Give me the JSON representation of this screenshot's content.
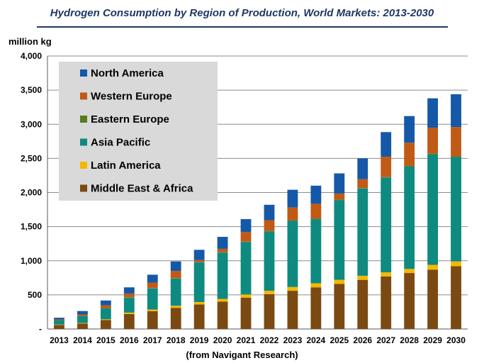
{
  "chart_data": {
    "type": "bar",
    "stacked": true,
    "title": "Hydrogen Consumption by Region of Production, World Markets: 2013-2030",
    "ylabel": "million kg",
    "source": "(from Navigant Research)",
    "ylim": [
      0,
      4000
    ],
    "yticks": [
      0,
      500,
      1000,
      1500,
      2000,
      2500,
      3000,
      3500,
      4000
    ],
    "ytick_labels": [
      "-",
      "500",
      "1,000",
      "1,500",
      "2,000",
      "2,500",
      "3,000",
      "3,500",
      "4,000"
    ],
    "grid": true,
    "legend_position": "top-left",
    "categories": [
      "2013",
      "2014",
      "2015",
      "2016",
      "2017",
      "2018",
      "2019",
      "2020",
      "2021",
      "2022",
      "2023",
      "2024",
      "2025",
      "2026",
      "2027",
      "2028",
      "2029",
      "2030"
    ],
    "series": [
      {
        "name": "Middle East & Africa",
        "color": "#7b4a12",
        "values": [
          60,
          80,
          130,
          220,
          260,
          310,
          360,
          400,
          460,
          510,
          560,
          610,
          660,
          720,
          770,
          820,
          870,
          920
        ]
      },
      {
        "name": "Latin America",
        "color": "#f5b800",
        "values": [
          5,
          8,
          12,
          20,
          25,
          30,
          35,
          40,
          45,
          50,
          55,
          60,
          60,
          60,
          60,
          60,
          70,
          70
        ]
      },
      {
        "name": "Asia Pacific",
        "color": "#0f8a80",
        "values": [
          60,
          100,
          160,
          220,
          310,
          400,
          580,
          680,
          770,
          870,
          970,
          940,
          1170,
          1280,
          1390,
          1500,
          1620,
          1530
        ]
      },
      {
        "name": "Eastern Europe",
        "color": "#5a7a1e",
        "values": [
          5,
          5,
          5,
          5,
          5,
          5,
          5,
          5,
          5,
          5,
          5,
          5,
          5,
          5,
          5,
          10,
          10,
          10
        ]
      },
      {
        "name": "Western Europe",
        "color": "#c05a16",
        "values": [
          10,
          20,
          40,
          55,
          80,
          105,
          30,
          50,
          140,
          160,
          190,
          220,
          90,
          130,
          300,
          340,
          380,
          430
        ]
      },
      {
        "name": "North America",
        "color": "#1558a8",
        "values": [
          25,
          50,
          70,
          90,
          115,
          140,
          150,
          175,
          190,
          225,
          260,
          265,
          295,
          305,
          360,
          390,
          430,
          480
        ]
      }
    ],
    "legend_order": [
      "North America",
      "Western Europe",
      "Eastern Europe",
      "Asia Pacific",
      "Latin America",
      "Middle East & Africa"
    ]
  }
}
